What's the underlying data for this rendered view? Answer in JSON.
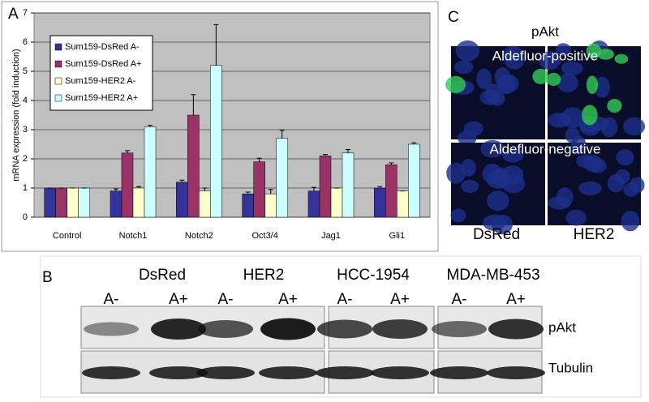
{
  "chart_data": {
    "type": "bar",
    "ylabel": "mRNA expression (fold induction)",
    "categories": [
      "Control",
      "Notch1",
      "Notch2",
      "Oct3/4",
      "Jag1",
      "Gli1"
    ],
    "series": [
      {
        "name": "Sum159-DsRed A-",
        "color": "#333399",
        "values": [
          1,
          0.9,
          1.2,
          0.8,
          0.9,
          1.0
        ],
        "errors": [
          0,
          0.07,
          0.07,
          0.06,
          0.12,
          0.05
        ]
      },
      {
        "name": "Sum159-DsRed A+",
        "color": "#993366",
        "values": [
          1,
          2.2,
          3.5,
          1.9,
          2.1,
          1.8
        ],
        "errors": [
          0,
          0.08,
          0.7,
          0.12,
          0.05,
          0.06
        ]
      },
      {
        "name": "Sum159-HER2 A-",
        "color": "#ffffcc",
        "values": [
          1,
          1.0,
          0.9,
          0.8,
          1.0,
          0.9
        ],
        "errors": [
          0,
          0.05,
          0.1,
          0.15,
          0,
          0
        ]
      },
      {
        "name": "Sum159-HER2 A+",
        "color": "#ccffff",
        "values": [
          1,
          3.1,
          5.2,
          2.7,
          2.2,
          2.5
        ],
        "errors": [
          0,
          0.05,
          1.4,
          0.28,
          0.12,
          0.05
        ]
      }
    ],
    "ylim": [
      0,
      7
    ],
    "yticks": [
      0,
      1,
      2,
      3,
      4,
      5,
      6,
      7
    ],
    "grid": true,
    "legend": "upper left"
  },
  "figure": {
    "panel_a": {
      "label": "A"
    },
    "panel_b": {
      "label": "B",
      "groups": [
        {
          "name": "DsRed",
          "lanes": [
            "A-",
            "A+"
          ]
        },
        {
          "name": "HER2",
          "lanes": [
            "A-",
            "A+"
          ]
        },
        {
          "name": "HCC-1954",
          "lanes": [
            "A-",
            "A+"
          ]
        },
        {
          "name": "MDA-MB-453",
          "lanes": [
            "A-",
            "A+"
          ]
        }
      ],
      "rows": [
        "pAkt",
        "Tubulin"
      ]
    },
    "panel_c": {
      "label": "C",
      "title": "pAkt",
      "rows": [
        "Aldefluor-positive",
        "Aldefluor-negative"
      ],
      "columns": [
        "DsRed",
        "HER2"
      ]
    }
  }
}
